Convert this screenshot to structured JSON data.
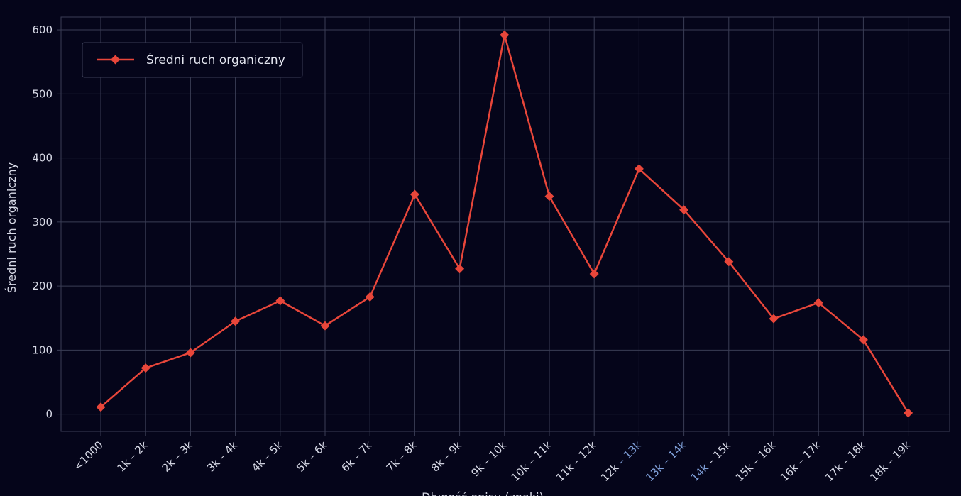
{
  "chart_data": {
    "type": "line",
    "categories": [
      "<1000",
      "1k – 2k",
      "2k – 3k",
      "3k – 4k",
      "4k – 5k",
      "5k – 6k",
      "6k – 7k",
      "7k – 8k",
      "8k – 9k",
      "9k – 10k",
      "10k – 11k",
      "11k – 12k",
      "12k – 13k",
      "13k – 14k",
      "14k – 15k",
      "15k – 16k",
      "16k – 17k",
      "17k – 18k",
      "18k – 19k"
    ],
    "series": [
      {
        "name": "Średni ruch organiczny",
        "values": [
          11,
          72,
          96,
          145,
          177,
          138,
          183,
          343,
          227,
          592,
          340,
          219,
          383,
          319,
          238,
          149,
          174,
          116,
          2
        ]
      }
    ],
    "xlabel": "Długość opisu (znaki)",
    "ylabel": "Średni ruch organiczny",
    "ylim": [
      -27,
      620
    ],
    "yticks": [
      0,
      100,
      200,
      300,
      400,
      500,
      600
    ],
    "grid": true,
    "legend": "top-left",
    "colors": {
      "line": "#e8463a",
      "background": "#05051a",
      "grid": "#3a3d55",
      "text": "#d7d9e6",
      "tick_highlight": "#7f9fd8"
    }
  }
}
